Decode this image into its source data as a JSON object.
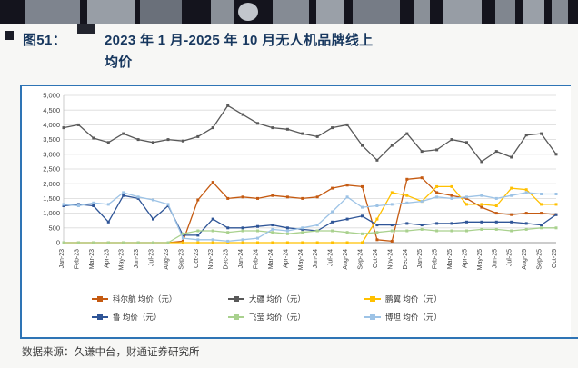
{
  "header": {
    "figure_label": "图51：",
    "title_line1": "2023 年 1 月-2025 年 10 月无人机品牌线上",
    "title_line2": "均价"
  },
  "footer": {
    "source": "数据来源：久谦中台，财通证券研究所"
  },
  "colors": {
    "accent_blue": "#2e74b5",
    "title_navy": "#17375e"
  },
  "chart_data": {
    "type": "line",
    "title": "2023年1月-2025年10月无人机品牌线上均价",
    "xlabel": "",
    "ylabel": "",
    "ylim": [
      0,
      5000
    ],
    "ytick_step": 500,
    "grid": true,
    "legend_position": "bottom",
    "categories": [
      "Jan-23",
      "Feb-23",
      "Mar-23",
      "Apr-23",
      "May-23",
      "Jun-23",
      "Jul-23",
      "Aug-23",
      "Sep-23",
      "Oct-23",
      "Nov-23",
      "Dec-23",
      "Jan-24",
      "Feb-24",
      "Mar-24",
      "Apr-24",
      "May-24",
      "Jun-24",
      "Jul-24",
      "Aug-24",
      "Sep-24",
      "Oct-24",
      "Nov-24",
      "Dec-24",
      "Jan-25",
      "Feb-25",
      "Mar-25",
      "Apr-25",
      "May-25",
      "Jun-25",
      "Jul-25",
      "Aug-25",
      "Sep-25",
      "Oct-25"
    ],
    "series": [
      {
        "name": "科尔航 均价（元）",
        "color": "#C55A11",
        "values": [
          0,
          0,
          0,
          0,
          0,
          0,
          0,
          0,
          50,
          1450,
          2050,
          1500,
          1550,
          1500,
          1600,
          1550,
          1500,
          1550,
          1850,
          1950,
          1900,
          100,
          50,
          2150,
          2200,
          1700,
          1600,
          1500,
          1200,
          1000,
          950,
          1000,
          1000,
          950
        ]
      },
      {
        "name": "大疆 均价（元）",
        "color": "#595959",
        "values": [
          3900,
          4000,
          3550,
          3400,
          3700,
          3500,
          3400,
          3500,
          3450,
          3600,
          3900,
          4650,
          4350,
          4050,
          3900,
          3850,
          3700,
          3600,
          3900,
          4000,
          3300,
          2800,
          3300,
          3700,
          3100,
          3150,
          3500,
          3400,
          2750,
          3100,
          2900,
          3650,
          3700,
          3000
        ]
      },
      {
        "name": "鹏翼 均价（元）",
        "color": "#FFC000",
        "values": [
          0,
          0,
          0,
          0,
          0,
          0,
          0,
          0,
          0,
          0,
          0,
          0,
          0,
          0,
          0,
          0,
          0,
          0,
          0,
          0,
          0,
          800,
          1700,
          1600,
          1400,
          1900,
          1900,
          1300,
          1300,
          1250,
          1850,
          1800,
          1300,
          1300
        ]
      },
      {
        "name": "鲁 均价（元）",
        "color": "#2F5597",
        "values": [
          1250,
          1300,
          1250,
          700,
          1600,
          1500,
          800,
          1250,
          250,
          250,
          800,
          500,
          500,
          550,
          600,
          500,
          450,
          400,
          700,
          800,
          900,
          600,
          600,
          650,
          600,
          650,
          650,
          700,
          700,
          700,
          700,
          650,
          600,
          950
        ]
      },
      {
        "name": "飞莹 均价（元）",
        "color": "#A9D18E",
        "values": [
          0,
          0,
          0,
          0,
          0,
          0,
          0,
          0,
          300,
          400,
          400,
          350,
          400,
          400,
          350,
          300,
          350,
          400,
          400,
          350,
          300,
          350,
          400,
          400,
          450,
          400,
          400,
          400,
          450,
          450,
          400,
          450,
          500,
          500
        ]
      },
      {
        "name": "博坦 均价（元）",
        "color": "#9DC3E6",
        "values": [
          1300,
          1250,
          1350,
          1300,
          1700,
          1550,
          1450,
          1300,
          150,
          100,
          100,
          50,
          100,
          150,
          450,
          400,
          500,
          600,
          1050,
          1550,
          1200,
          1250,
          1300,
          1350,
          1400,
          1550,
          1500,
          1550,
          1600,
          1500,
          1600,
          1700,
          1650,
          1650
        ]
      }
    ]
  }
}
